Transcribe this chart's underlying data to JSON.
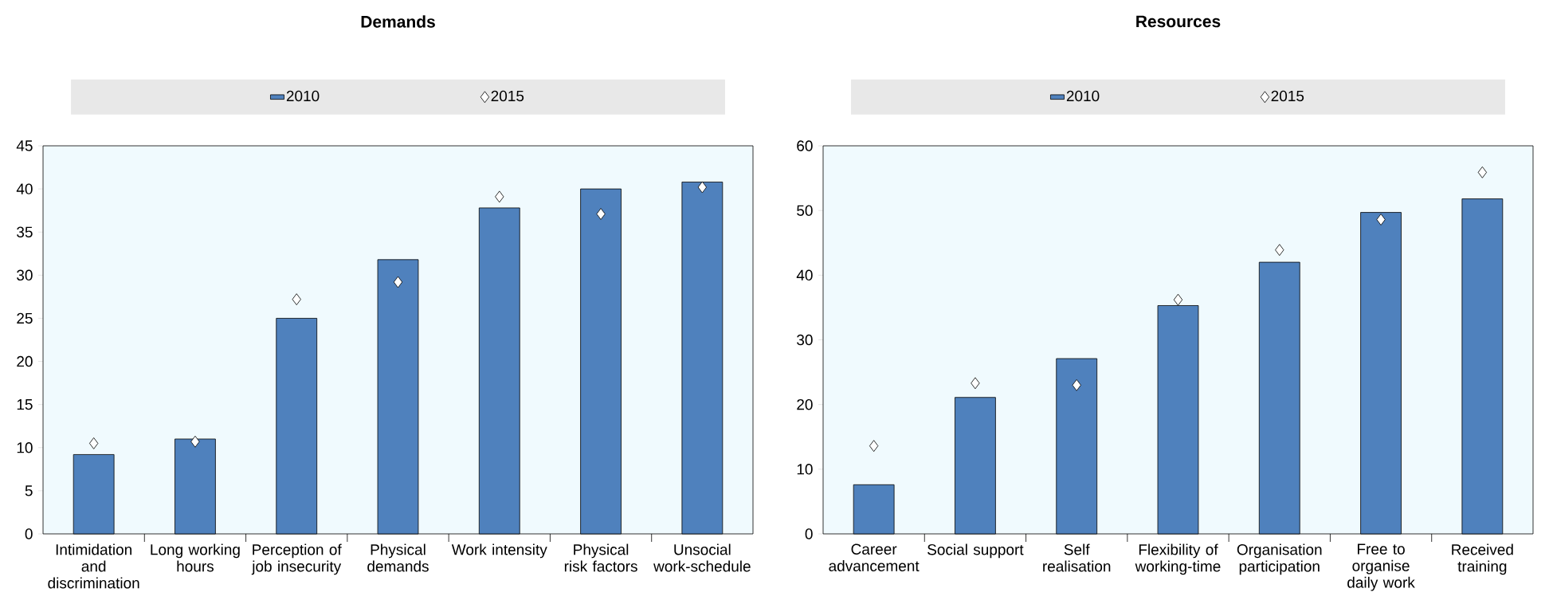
{
  "chart_data": [
    {
      "type": "bar",
      "title": "Demands",
      "categories": [
        "Intimidation and discrimination",
        "Long working hours",
        "Perception of job insecurity",
        "Physical demands",
        "Work intensity",
        "Physical risk factors",
        "Unsocial work-schedule"
      ],
      "series": [
        {
          "name": "2010",
          "color": "#4f81bd",
          "values": [
            9.2,
            11,
            25,
            31.8,
            37.8,
            40,
            40.8
          ]
        },
        {
          "name": "2015",
          "type": "scatter",
          "marker": "diamond",
          "color": "#ffffff",
          "x": [
            "Intimidation and discrimination",
            "Long working hours",
            "Perception of job insecurity",
            "Physical demands",
            "Work intensity",
            "Physical risk factors",
            "Unsocial work-schedule"
          ],
          "values": [
            10.5,
            10.7,
            27.2,
            29.2,
            39.1,
            37.1,
            40.2
          ]
        }
      ],
      "ylim": [
        0,
        45
      ],
      "yticks": [
        0,
        5,
        10,
        15,
        20,
        25,
        30,
        35,
        40,
        45
      ],
      "legend": "top"
    },
    {
      "type": "bar",
      "title": "Resources",
      "categories": [
        "Career advancement",
        "Social support",
        "Self realisation",
        "Flexibility of working-time",
        "Organisation participation",
        "Free to organise daily work",
        "Received training"
      ],
      "series": [
        {
          "name": "2010",
          "color": "#4f81bd",
          "values": [
            7.6,
            21.1,
            27.1,
            35.3,
            42,
            49.7,
            51.8
          ]
        },
        {
          "name": "2015",
          "type": "scatter",
          "marker": "diamond",
          "color": "#ffffff",
          "x": [
            "Career advancement",
            "Social support",
            "Self realisation",
            "Flexibility of working-time",
            "Organisation participation",
            "Free to organise daily work",
            "Received training"
          ],
          "values": [
            13.6,
            23.3,
            23.0,
            36.2,
            43.9,
            48.6,
            55.9
          ]
        }
      ],
      "ylim": [
        0,
        60
      ],
      "yticks": [
        0,
        10,
        20,
        30,
        40,
        50,
        60
      ],
      "legend": "top"
    }
  ]
}
